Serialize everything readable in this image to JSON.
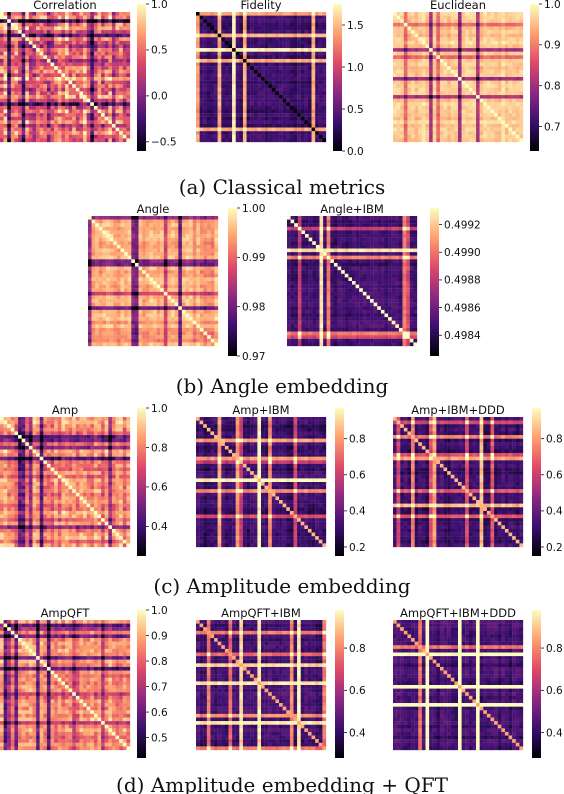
{
  "captions": {
    "a": "(a) Classical metrics",
    "b": "(b) Angle embedding",
    "c": "(c) Amplitude embedding",
    "d": "(d) Amplitude embedding + QFT"
  },
  "colormap": "magma",
  "colormap_stops": [
    "#000004",
    "#3b0f70",
    "#8c2981",
    "#de4968",
    "#fe9f6d",
    "#fcfdbf"
  ],
  "chart_data": [
    {
      "type": "heatmap",
      "panel": "a",
      "title": "Correlation",
      "vmin": -0.6,
      "vmax": 1.0,
      "ticks": [
        1.0,
        0.5,
        0.0,
        -0.5
      ],
      "tick_labels": [
        "1.0",
        "0.5",
        "0.0",
        "−0.5"
      ],
      "bg_level": 0.62,
      "noise": 0.34,
      "diag_value": 1.0
    },
    {
      "type": "heatmap",
      "panel": "a",
      "title": "Fidelity",
      "vmin": 0.0,
      "vmax": 1.75,
      "ticks": [
        1.5,
        1.0,
        0.5,
        0.0
      ],
      "tick_labels": [
        "1.5",
        "1.0",
        "0.5",
        "0.0"
      ],
      "bg_level": 0.17,
      "noise": 0.08,
      "diag_value": 0.0
    },
    {
      "type": "heatmap",
      "panel": "a",
      "title": "Euclidean",
      "vmin": 0.64,
      "vmax": 1.0,
      "ticks": [
        1.0,
        0.9,
        0.8,
        0.7
      ],
      "tick_labels": [
        "1.0",
        "0.9",
        "0.8",
        "0.7"
      ],
      "bg_level": 0.9,
      "noise": 0.08,
      "diag_value": 1.0
    },
    {
      "type": "heatmap",
      "panel": "b",
      "title": "Angle",
      "vmin": 0.97,
      "vmax": 1.0,
      "ticks": [
        1.0,
        0.99,
        0.98,
        0.97
      ],
      "tick_labels": [
        "1.00",
        "0.99",
        "0.98",
        "0.97"
      ],
      "bg_level": 0.8,
      "noise": 0.12,
      "diag_value": 1.0
    },
    {
      "type": "heatmap",
      "panel": "b",
      "title": "Angle+IBM",
      "vmin": 0.49825,
      "vmax": 0.49932,
      "ticks": [
        0.4992,
        0.499,
        0.4988,
        0.4986,
        0.4984
      ],
      "tick_labels": [
        "0.4992",
        "0.4990",
        "0.4988",
        "0.4986",
        "0.4984"
      ],
      "bg_level": 0.2,
      "noise": 0.08,
      "diag_value": 0.9
    },
    {
      "type": "heatmap",
      "panel": "c",
      "title": "Amp",
      "vmin": 0.25,
      "vmax": 1.0,
      "ticks": [
        1.0,
        0.8,
        0.6,
        0.4
      ],
      "tick_labels": [
        "1.0",
        "0.8",
        "0.6",
        "0.4"
      ],
      "bg_level": 0.72,
      "noise": 0.2,
      "diag_value": 1.0
    },
    {
      "type": "heatmap",
      "panel": "c",
      "title": "Amp+IBM",
      "vmin": 0.15,
      "vmax": 0.97,
      "ticks": [
        0.8,
        0.6,
        0.4,
        0.2
      ],
      "tick_labels": [
        "0.8",
        "0.6",
        "0.4",
        "0.2"
      ],
      "bg_level": 0.18,
      "noise": 0.09,
      "diag_value": 0.85
    },
    {
      "type": "heatmap",
      "panel": "c",
      "title": "Amp+IBM+DDD",
      "vmin": 0.15,
      "vmax": 0.97,
      "ticks": [
        0.8,
        0.6,
        0.4,
        0.2
      ],
      "tick_labels": [
        "0.8",
        "0.6",
        "0.4",
        "0.2"
      ],
      "bg_level": 0.18,
      "noise": 0.09,
      "diag_value": 0.85
    },
    {
      "type": "heatmap",
      "panel": "d",
      "title": "AmpQFT",
      "vmin": 0.42,
      "vmax": 1.0,
      "ticks": [
        1.0,
        0.9,
        0.8,
        0.7,
        0.6,
        0.5
      ],
      "tick_labels": [
        "1.0",
        "0.9",
        "0.8",
        "0.7",
        "0.6",
        "0.5"
      ],
      "bg_level": 0.72,
      "noise": 0.18,
      "diag_value": 1.0
    },
    {
      "type": "heatmap",
      "panel": "d",
      "title": "AmpQFT+IBM",
      "vmin": 0.28,
      "vmax": 0.98,
      "ticks": [
        0.8,
        0.6,
        0.4
      ],
      "tick_labels": [
        "0.8",
        "0.6",
        "0.4"
      ],
      "bg_level": 0.2,
      "noise": 0.09,
      "diag_value": 0.85
    },
    {
      "type": "heatmap",
      "panel": "d",
      "title": "AmpQFT+IBM+DDD",
      "vmin": 0.28,
      "vmax": 0.98,
      "ticks": [
        0.8,
        0.6,
        0.4
      ],
      "tick_labels": [
        "0.8",
        "0.6",
        "0.4"
      ],
      "bg_level": 0.2,
      "noise": 0.09,
      "diag_value": 0.85
    }
  ]
}
